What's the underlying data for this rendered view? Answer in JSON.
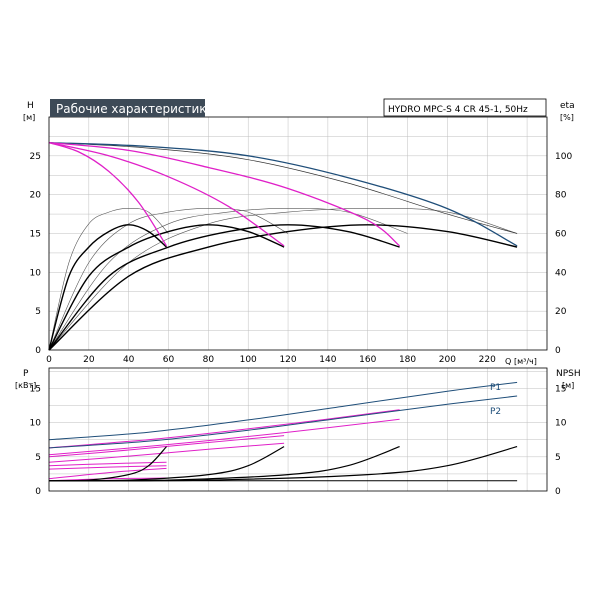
{
  "chart_data": [
    {
      "type": "line",
      "title": "Рабочие характеристики",
      "model_label": "HYDRO MPC-S 4 CR 45-1, 50Hz",
      "left_axis": {
        "label": "H",
        "unit": "[м]",
        "ylim": [
          0,
          30
        ],
        "ticks": [
          0,
          5,
          10,
          15,
          20,
          25
        ]
      },
      "right_axis": {
        "label": "eta",
        "unit": "[%]",
        "ylim": [
          0,
          120
        ],
        "ticks": [
          0,
          20,
          40,
          60,
          80,
          100
        ]
      },
      "x_axis": {
        "label": "Q",
        "unit": "[м³/ч]",
        "xlim": [
          0,
          250
        ],
        "ticks": [
          0,
          20,
          40,
          60,
          80,
          100,
          120,
          140,
          160,
          180,
          200,
          220
        ]
      },
      "grid": true,
      "head_curves": [
        {
          "pumps": 4,
          "points": [
            [
              0,
              26.7
            ],
            [
              50,
              26.2
            ],
            [
              100,
              25
            ],
            [
              150,
              22.2
            ],
            [
              200,
              18.2
            ],
            [
              235,
              13.4
            ]
          ]
        },
        {
          "pumps": 3,
          "points": [
            [
              0,
              26.7
            ],
            [
              40,
              25.7
            ],
            [
              80,
              23.5
            ],
            [
              120,
              20.8
            ],
            [
              160,
              16.7
            ],
            [
              176,
              13.4
            ]
          ]
        },
        {
          "pumps": 2,
          "points": [
            [
              0,
              26.7
            ],
            [
              30,
              25
            ],
            [
              60,
              22.3
            ],
            [
              90,
              18.5
            ],
            [
              118,
              13.4
            ]
          ]
        },
        {
          "pumps": 1,
          "points": [
            [
              0,
              26.7
            ],
            [
              15,
              25.5
            ],
            [
              30,
              23
            ],
            [
              45,
              19
            ],
            [
              59,
              13.4
            ]
          ]
        }
      ],
      "other_head_curve": {
        "points": [
          [
            0,
            26.7
          ],
          [
            50,
            26
          ],
          [
            100,
            24.5
          ],
          [
            150,
            21.5
          ],
          [
            200,
            17.5
          ],
          [
            235,
            15
          ]
        ]
      },
      "efficiency_curves": [
        {
          "pumps": 1,
          "points": [
            [
              0,
              0
            ],
            [
              10,
              38
            ],
            [
              20,
              53
            ],
            [
              30,
              61
            ],
            [
              40,
              64.5
            ],
            [
              50,
              61
            ],
            [
              59,
              53
            ]
          ]
        },
        {
          "pumps": 2,
          "points": [
            [
              0,
              0
            ],
            [
              20,
              38
            ],
            [
              40,
              53
            ],
            [
              60,
              61
            ],
            [
              80,
              64.5
            ],
            [
              100,
              61
            ],
            [
              118,
              53
            ]
          ]
        },
        {
          "pumps": 3,
          "points": [
            [
              0,
              0
            ],
            [
              30,
              38
            ],
            [
              60,
              53
            ],
            [
              90,
              61
            ],
            [
              120,
              64.5
            ],
            [
              150,
              61
            ],
            [
              176,
              53
            ]
          ]
        },
        {
          "pumps": 4,
          "points": [
            [
              0,
              0
            ],
            [
              40,
              38
            ],
            [
              80,
              53
            ],
            [
              120,
              61
            ],
            [
              160,
              64.5
            ],
            [
              200,
              61
            ],
            [
              235,
              53
            ]
          ]
        }
      ],
      "thin_efficiency_curves": [
        {
          "points": [
            [
              0,
              0
            ],
            [
              10,
              45
            ],
            [
              20,
              65
            ],
            [
              30,
              71
            ],
            [
              40,
              73
            ],
            [
              50,
              71
            ],
            [
              60,
              60
            ]
          ]
        },
        {
          "points": [
            [
              0,
              0
            ],
            [
              20,
              45
            ],
            [
              40,
              65
            ],
            [
              60,
              71
            ],
            [
              80,
              73
            ],
            [
              100,
              71
            ],
            [
              120,
              60
            ]
          ]
        },
        {
          "points": [
            [
              0,
              0
            ],
            [
              30,
              45
            ],
            [
              60,
              65
            ],
            [
              90,
              71
            ],
            [
              120,
              73
            ],
            [
              150,
              71
            ],
            [
              180,
              60
            ]
          ]
        },
        {
          "points": [
            [
              0,
              0
            ],
            [
              40,
              45
            ],
            [
              80,
              65
            ],
            [
              120,
              71
            ],
            [
              160,
              73
            ],
            [
              200,
              71
            ],
            [
              235,
              60
            ]
          ]
        }
      ]
    },
    {
      "type": "line",
      "left_axis": {
        "label": "P",
        "unit": "[кВт]",
        "ylim": [
          0,
          18
        ],
        "ticks": [
          0,
          5,
          10,
          15
        ]
      },
      "right_axis": {
        "label": "NPSH",
        "unit": "[м]",
        "ylim": [
          0,
          18
        ],
        "ticks": [
          0,
          5,
          10,
          15
        ]
      },
      "x_axis": {
        "xlim": [
          0,
          250
        ]
      },
      "grid": true,
      "power_curves": [
        {
          "name": "P1",
          "points": [
            [
              0,
              7.5
            ],
            [
              50,
              8.6
            ],
            [
              100,
              10.4
            ],
            [
              150,
              12.5
            ],
            [
              200,
              14.6
            ],
            [
              235,
              15.9
            ]
          ]
        },
        {
          "name": "P2",
          "points": [
            [
              0,
              6.3
            ],
            [
              50,
              7.3
            ],
            [
              100,
              8.9
            ],
            [
              150,
              10.8
            ],
            [
              200,
              12.7
            ],
            [
              235,
              13.9
            ]
          ]
        }
      ],
      "partial_power_curves": [
        {
          "points": [
            [
              0,
              6.3
            ],
            [
              60,
              7.8
            ],
            [
              120,
              9.8
            ],
            [
              176,
              11.9
            ]
          ]
        },
        {
          "points": [
            [
              0,
              5.3
            ],
            [
              60,
              6.8
            ],
            [
              120,
              8.6
            ],
            [
              176,
              10.5
            ]
          ]
        },
        {
          "points": [
            [
              0,
              5.0
            ],
            [
              40,
              6.0
            ],
            [
              80,
              7.1
            ],
            [
              118,
              8.1
            ]
          ]
        },
        {
          "points": [
            [
              0,
              4.2
            ],
            [
              40,
              5.1
            ],
            [
              80,
              6.1
            ],
            [
              118,
              7.0
            ]
          ]
        },
        {
          "points": [
            [
              0,
              3.7
            ],
            [
              30,
              4.0
            ],
            [
              59,
              4.2
            ]
          ]
        },
        {
          "points": [
            [
              0,
              3.2
            ],
            [
              30,
              3.5
            ],
            [
              59,
              3.7
            ]
          ]
        },
        {
          "points": [
            [
              0,
              1.8
            ],
            [
              30,
              2.7
            ],
            [
              59,
              3.3
            ]
          ]
        },
        {
          "points": [
            [
              0,
              1.5
            ],
            [
              30,
              1.8
            ],
            [
              59,
              1.9
            ]
          ]
        }
      ],
      "npsh_curves": [
        {
          "pumps": 1,
          "points": [
            [
              0,
              1.5
            ],
            [
              20,
              1.6
            ],
            [
              40,
              2.4
            ],
            [
              50,
              3.7
            ],
            [
              59,
              6.5
            ]
          ]
        },
        {
          "pumps": 2,
          "points": [
            [
              0,
              1.5
            ],
            [
              40,
              1.6
            ],
            [
              80,
              2.4
            ],
            [
              100,
              3.7
            ],
            [
              118,
              6.5
            ]
          ]
        },
        {
          "pumps": 3,
          "points": [
            [
              0,
              1.5
            ],
            [
              60,
              1.6
            ],
            [
              120,
              2.4
            ],
            [
              150,
              3.7
            ],
            [
              176,
              6.5
            ]
          ]
        },
        {
          "pumps": 4,
          "points": [
            [
              0,
              1.5
            ],
            [
              80,
              1.6
            ],
            [
              160,
              2.4
            ],
            [
              200,
              3.7
            ],
            [
              235,
              6.5
            ]
          ]
        }
      ]
    }
  ],
  "colors": {
    "grid": "#bfbfbf",
    "axis": "#000000",
    "head_max": "#1f4e79",
    "pink": "#e020c8",
    "black": "#000000",
    "title_bg": "#3d4a57",
    "title_fg": "#ffffff"
  }
}
